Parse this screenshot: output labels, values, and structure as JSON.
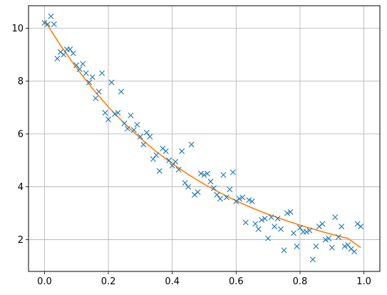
{
  "chart_data": {
    "type": "scatter",
    "title": "",
    "xlabel": "",
    "ylabel": "",
    "xlim": [
      -0.05,
      1.05
    ],
    "ylim": [
      0.8,
      10.85
    ],
    "grid": true,
    "xticks": [
      0.0,
      0.2,
      0.4,
      0.6,
      0.8,
      1.0
    ],
    "xtick_labels": [
      "0.0",
      "0.2",
      "0.4",
      "0.6",
      "0.8",
      "1.0"
    ],
    "yticks": [
      2,
      4,
      6,
      8,
      10
    ],
    "ytick_labels": [
      "2",
      "4",
      "6",
      "8",
      "10"
    ],
    "series": [
      {
        "kind": "scatter",
        "marker": "x",
        "color": "#1f77b4",
        "x": [
          0.0,
          0.01,
          0.02,
          0.03,
          0.04,
          0.05,
          0.06,
          0.07,
          0.08,
          0.09,
          0.1,
          0.11,
          0.12,
          0.13,
          0.14,
          0.15,
          0.16,
          0.17,
          0.18,
          0.19,
          0.2,
          0.21,
          0.22,
          0.23,
          0.24,
          0.25,
          0.26,
          0.27,
          0.28,
          0.29,
          0.3,
          0.31,
          0.32,
          0.33,
          0.34,
          0.35,
          0.36,
          0.37,
          0.38,
          0.39,
          0.4,
          0.41,
          0.42,
          0.43,
          0.44,
          0.45,
          0.46,
          0.47,
          0.48,
          0.49,
          0.5,
          0.51,
          0.52,
          0.53,
          0.54,
          0.55,
          0.56,
          0.57,
          0.58,
          0.59,
          0.6,
          0.61,
          0.62,
          0.63,
          0.64,
          0.65,
          0.66,
          0.67,
          0.68,
          0.69,
          0.7,
          0.71,
          0.72,
          0.73,
          0.74,
          0.75,
          0.76,
          0.77,
          0.78,
          0.79,
          0.8,
          0.81,
          0.82,
          0.83,
          0.84,
          0.85,
          0.86,
          0.87,
          0.88,
          0.89,
          0.9,
          0.91,
          0.92,
          0.93,
          0.94,
          0.95,
          0.96,
          0.97,
          0.98,
          0.99
        ],
        "y": [
          10.2,
          10.15,
          10.45,
          10.15,
          8.85,
          9.1,
          9.0,
          9.2,
          9.2,
          9.05,
          8.6,
          8.45,
          8.65,
          8.3,
          7.95,
          8.15,
          7.35,
          7.6,
          8.3,
          6.8,
          6.55,
          7.95,
          6.75,
          6.8,
          7.6,
          6.4,
          6.2,
          6.7,
          6.15,
          6.35,
          5.9,
          5.6,
          6.05,
          5.9,
          5.05,
          5.2,
          4.6,
          5.45,
          5.35,
          5.0,
          4.8,
          4.95,
          4.65,
          5.35,
          4.15,
          4.0,
          5.6,
          3.7,
          3.8,
          4.5,
          4.45,
          4.5,
          4.2,
          3.95,
          3.7,
          3.55,
          4.45,
          3.6,
          3.9,
          4.55,
          3.45,
          3.55,
          3.6,
          2.65,
          3.5,
          3.45,
          2.6,
          2.4,
          2.75,
          2.8,
          2.05,
          2.85,
          2.5,
          2.8,
          2.4,
          1.6,
          3.0,
          3.05,
          2.25,
          1.75,
          2.45,
          2.3,
          2.3,
          2.35,
          1.25,
          1.75,
          2.5,
          2.6,
          2.0,
          2.05,
          1.7,
          2.85,
          2.1,
          2.5,
          1.75,
          1.8,
          1.65,
          1.55,
          2.6,
          2.5
        ]
      },
      {
        "kind": "line",
        "color": "#ff7f0e",
        "x": [
          0.0,
          0.05,
          0.1,
          0.15,
          0.2,
          0.25,
          0.3,
          0.35,
          0.4,
          0.45,
          0.5,
          0.55,
          0.6,
          0.65,
          0.7,
          0.75,
          0.8,
          0.85,
          0.9,
          0.95,
          0.99
        ],
        "y": [
          10.3,
          9.35,
          8.5,
          7.72,
          7.02,
          6.4,
          5.84,
          5.33,
          4.88,
          4.47,
          4.1,
          3.77,
          3.47,
          3.2,
          2.96,
          2.75,
          2.55,
          2.37,
          2.2,
          2.05,
          1.7
        ]
      }
    ]
  }
}
